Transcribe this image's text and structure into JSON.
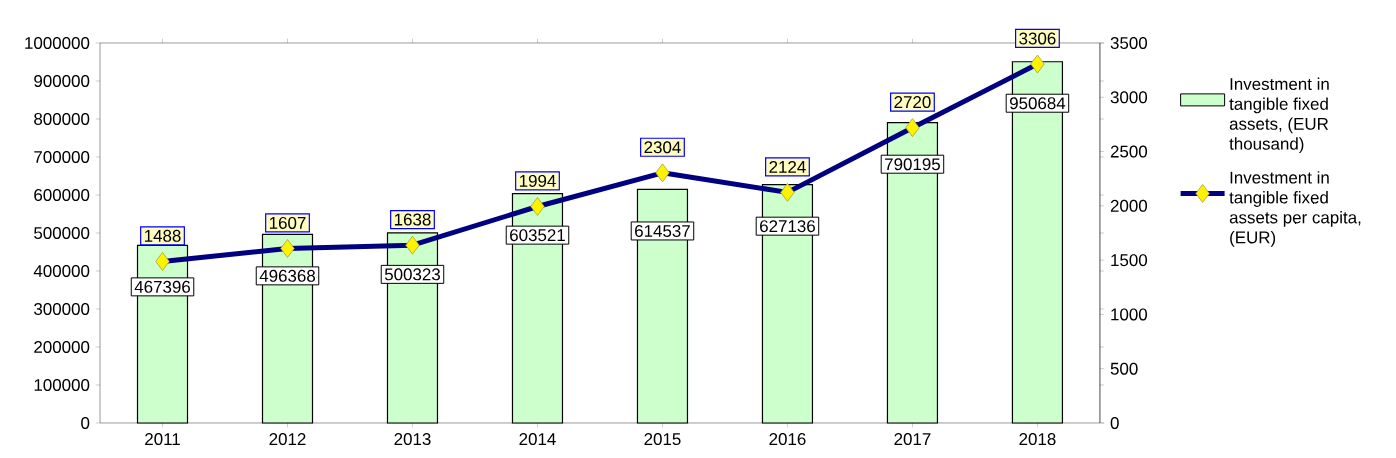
{
  "chart_data": {
    "type": "bar",
    "categories": [
      "2011",
      "2012",
      "2013",
      "2014",
      "2015",
      "2016",
      "2017",
      "2018"
    ],
    "series": [
      {
        "name": "Investment in tangible fixed assets, (EUR thousand)",
        "type": "bar",
        "color": "#ccffcc",
        "values": [
          467396,
          496368,
          500323,
          603521,
          614537,
          627136,
          790195,
          950684
        ]
      },
      {
        "name": "Investment in tangible fixed assets per capita, (EUR)",
        "type": "line",
        "axis": "y2",
        "color": "#000080",
        "marker": "diamond",
        "values": [
          1488,
          1607,
          1638,
          1994,
          2304,
          2124,
          2720,
          3306
        ]
      }
    ],
    "ylim": [
      0,
      1000000
    ],
    "yticks": [
      0,
      100000,
      200000,
      300000,
      400000,
      500000,
      600000,
      700000,
      800000,
      900000,
      1000000
    ],
    "y2lim": [
      0,
      3500
    ],
    "y2ticks": [
      0,
      500,
      1000,
      1500,
      2000,
      2500,
      3000,
      3500
    ],
    "data_labels": true,
    "legend": "right",
    "grid": false
  }
}
